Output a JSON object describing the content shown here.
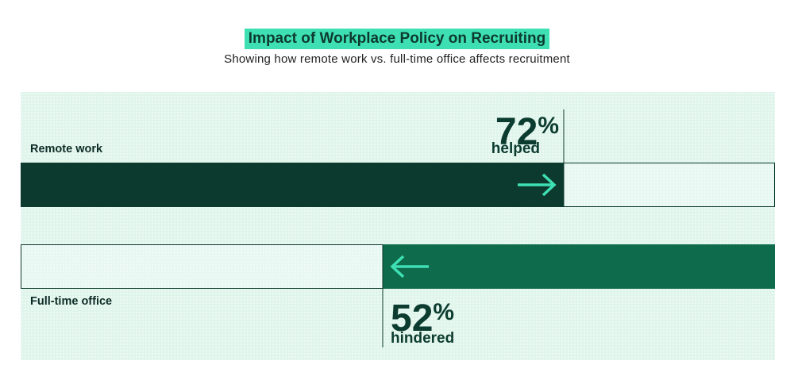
{
  "title": "Impact of Workplace Policy on Recruiting",
  "subtitle": "Showing how remote work vs. full-time office affects recruitment",
  "colors": {
    "remote_bar": "#0d3a2e",
    "office_bar": "#0e6b4c",
    "arrow": "#3ee0b3",
    "accent": "#3ee0b3",
    "panel": "#dff5ec"
  },
  "chart_data": {
    "type": "bar",
    "orientation": "horizontal",
    "categories": [
      "Remote work",
      "Full-time office"
    ],
    "series": [
      {
        "category": "Remote work",
        "value": 72,
        "value_label": "72%",
        "effect": "helped",
        "direction": "right"
      },
      {
        "category": "Full-time office",
        "value": 52,
        "value_label": "52%",
        "effect": "hindered",
        "direction": "left"
      }
    ],
    "xlim": [
      0,
      100
    ],
    "grid": false,
    "legend": "none"
  }
}
